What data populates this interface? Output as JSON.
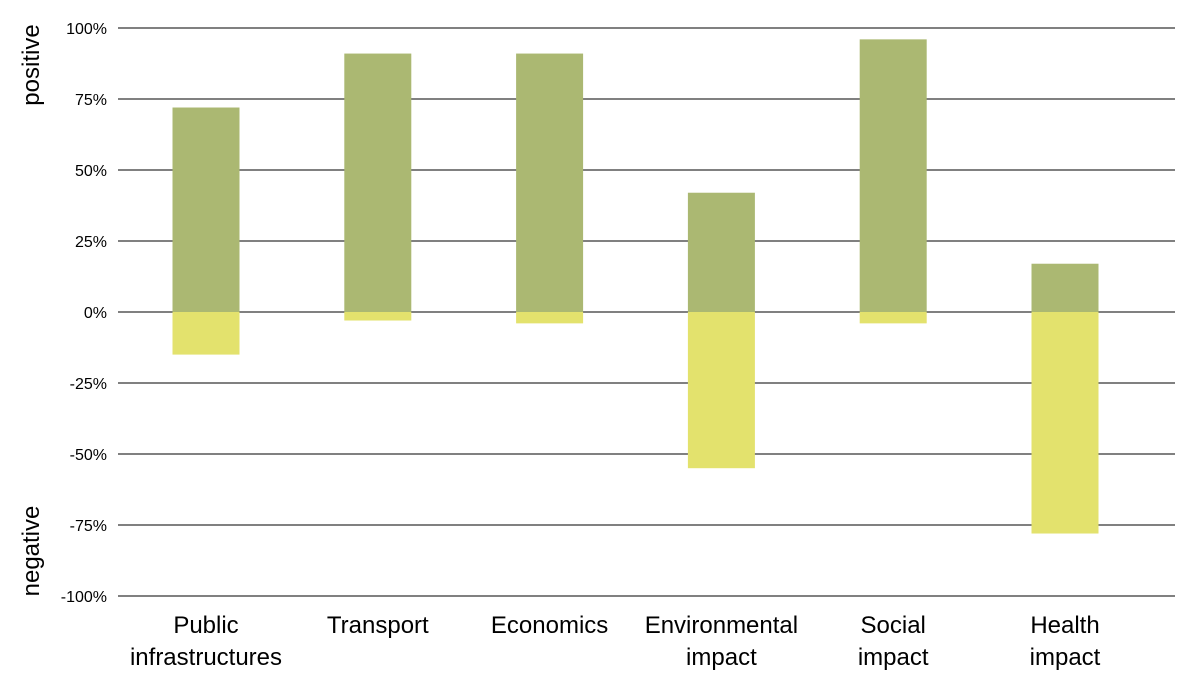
{
  "chart_data": {
    "type": "bar",
    "subtype": "diverging-stacked",
    "title": "",
    "categories": [
      [
        "Public",
        "infrastructures"
      ],
      [
        "Transport"
      ],
      [
        "Economics"
      ],
      [
        "Environmental",
        "impact"
      ],
      [
        "Social",
        "impact"
      ],
      [
        "Health",
        "impact"
      ]
    ],
    "series": [
      {
        "name": "positive",
        "color": "#abb872",
        "values": [
          72,
          91,
          91,
          42,
          96,
          17
        ]
      },
      {
        "name": "negative",
        "color": "#e3e26d",
        "values": [
          -15,
          -3,
          -4,
          -55,
          -4,
          -78
        ]
      }
    ],
    "yticks": [
      100,
      75,
      50,
      25,
      0,
      -25,
      -50,
      -75,
      -100
    ],
    "ytick_labels": [
      "100%",
      "75%",
      "50%",
      "25%",
      "0%",
      "-25%",
      "-50%",
      "-75%",
      "-100%"
    ],
    "ylim": [
      -100,
      100
    ],
    "ylabel_positive": "positive",
    "ylabel_negative": "negative",
    "grid": true
  }
}
